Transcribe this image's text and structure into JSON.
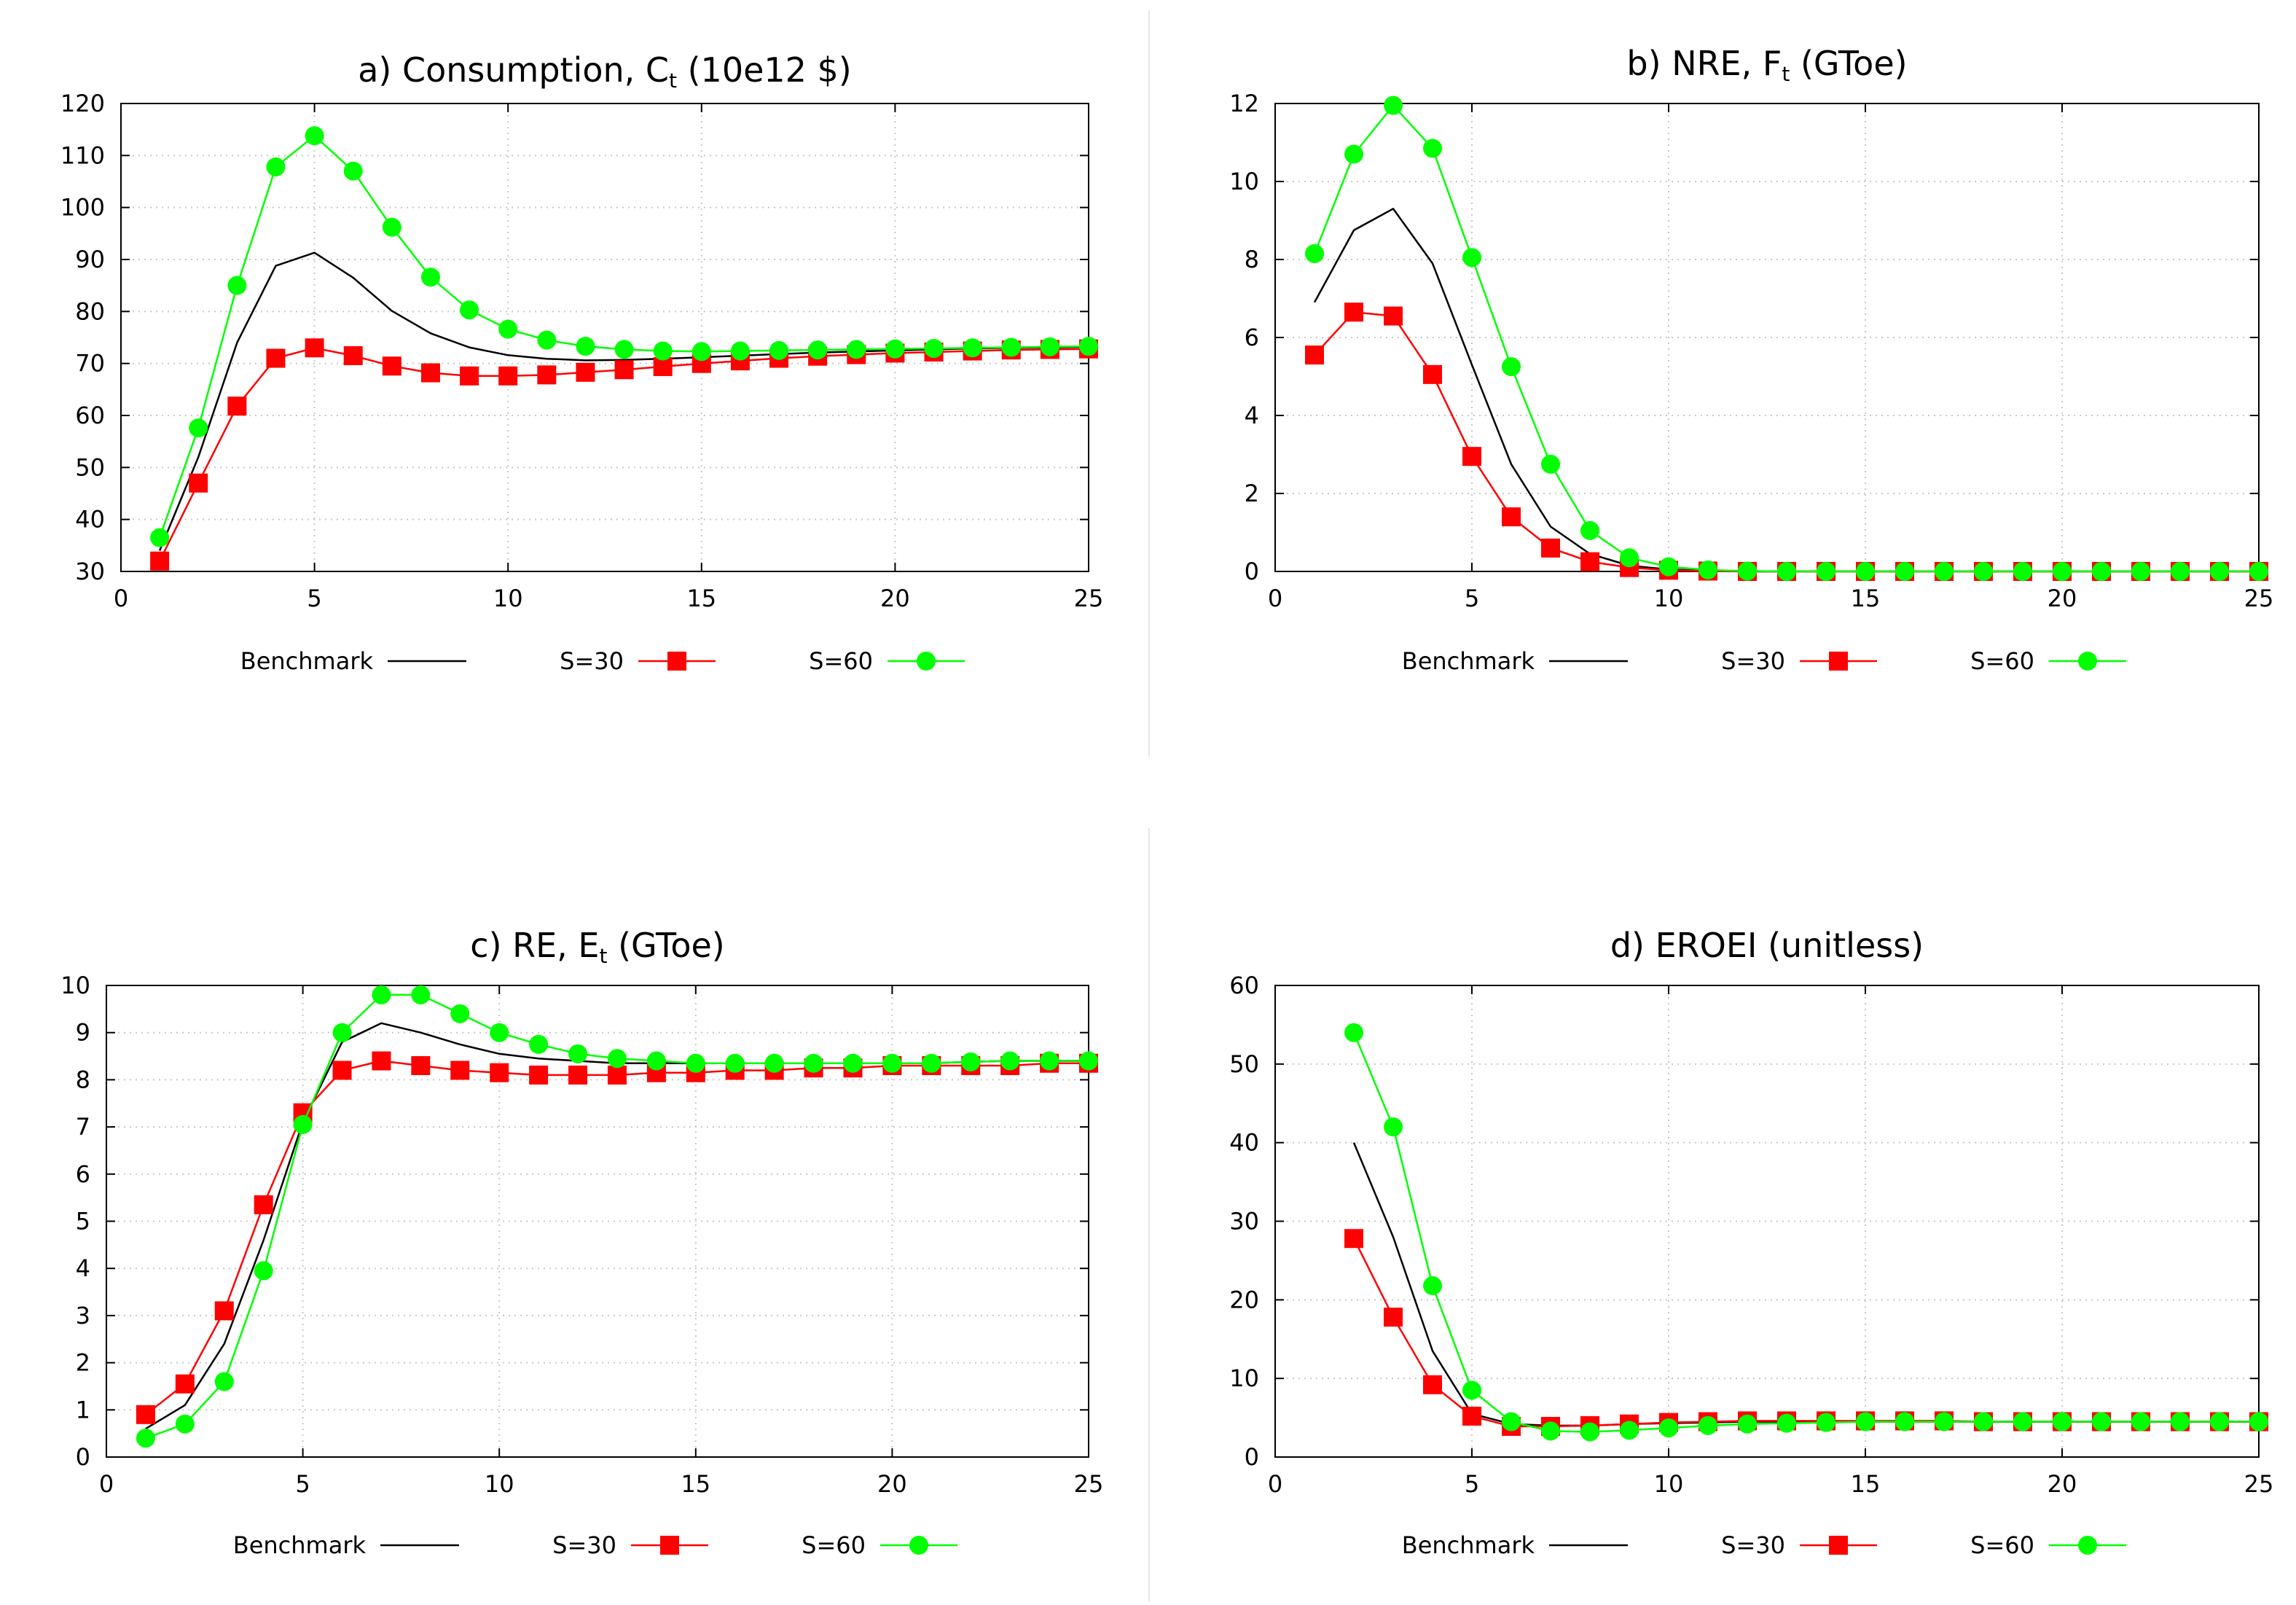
{
  "chart_data": [
    {
      "type": "line",
      "title": "a) Consumption, C",
      "title_sub": "t",
      "title_tail": " (10e12 $)",
      "xlim": [
        0,
        25
      ],
      "ylim": [
        30,
        120
      ],
      "xticks": [
        0,
        5,
        10,
        15,
        20,
        25
      ],
      "yticks": [
        30,
        40,
        50,
        60,
        70,
        80,
        90,
        100,
        110,
        120
      ],
      "grid": true,
      "legend_position": "bottom",
      "series": [
        {
          "name": "Benchmark",
          "color": "#000000",
          "marker": "none",
          "x": [
            1,
            2,
            3,
            4,
            5,
            6,
            7,
            8,
            9,
            10,
            11,
            12,
            13,
            14,
            15,
            16,
            17,
            18,
            19,
            20,
            21,
            22,
            23,
            24,
            25
          ],
          "values": [
            34,
            52,
            74,
            88.8,
            91.3,
            86.5,
            80.1,
            75.8,
            73.1,
            71.6,
            70.9,
            70.6,
            70.7,
            70.9,
            71.2,
            71.5,
            71.8,
            72.1,
            72.3,
            72.5,
            72.7,
            72.9,
            73.0,
            73.1,
            73.2
          ]
        },
        {
          "name": "S=30",
          "color": "#ff0000",
          "marker": "square",
          "x": [
            1,
            2,
            3,
            4,
            5,
            6,
            7,
            8,
            9,
            10,
            11,
            12,
            13,
            14,
            15,
            16,
            17,
            18,
            19,
            20,
            21,
            22,
            23,
            24,
            25
          ],
          "values": [
            32,
            47,
            61.8,
            71,
            73,
            71.5,
            69.5,
            68.2,
            67.6,
            67.6,
            67.8,
            68.3,
            68.8,
            69.4,
            70,
            70.5,
            71,
            71.4,
            71.7,
            72,
            72.2,
            72.4,
            72.6,
            72.7,
            72.8
          ]
        },
        {
          "name": "S=60",
          "color": "#00ff00",
          "marker": "circle",
          "x": [
            1,
            2,
            3,
            4,
            5,
            6,
            7,
            8,
            9,
            10,
            11,
            12,
            13,
            14,
            15,
            16,
            17,
            18,
            19,
            20,
            21,
            22,
            23,
            24,
            25
          ],
          "values": [
            36.5,
            57.6,
            85,
            107.8,
            113.8,
            107,
            96.2,
            86.6,
            80.3,
            76.6,
            74.5,
            73.3,
            72.7,
            72.4,
            72.3,
            72.4,
            72.5,
            72.6,
            72.7,
            72.8,
            72.9,
            73.0,
            73.1,
            73.2,
            73.3
          ]
        }
      ]
    },
    {
      "type": "line",
      "title": "b) NRE, F",
      "title_sub": "t",
      "title_tail": " (GToe)",
      "xlim": [
        0,
        25
      ],
      "ylim": [
        0,
        12
      ],
      "xticks": [
        0,
        5,
        10,
        15,
        20,
        25
      ],
      "yticks": [
        0,
        2,
        4,
        6,
        8,
        10,
        12
      ],
      "grid": true,
      "legend_position": "bottom",
      "series": [
        {
          "name": "Benchmark",
          "color": "#000000",
          "marker": "none",
          "x": [
            1,
            2,
            3,
            4,
            5,
            6,
            7,
            8,
            9,
            10,
            11,
            12,
            13,
            14,
            15,
            16,
            17,
            18,
            19,
            20,
            21,
            22,
            23,
            24,
            25
          ],
          "values": [
            6.9,
            8.75,
            9.3,
            7.9,
            5.3,
            2.75,
            1.15,
            0.45,
            0.15,
            0.05,
            0.02,
            0,
            0,
            0,
            0,
            0,
            0,
            0,
            0,
            0,
            0,
            0,
            0,
            0,
            0
          ]
        },
        {
          "name": "S=30",
          "color": "#ff0000",
          "marker": "square",
          "x": [
            1,
            2,
            3,
            4,
            5,
            6,
            7,
            8,
            9,
            10,
            11,
            12,
            13,
            14,
            15,
            16,
            17,
            18,
            19,
            20,
            21,
            22,
            23,
            24,
            25
          ],
          "values": [
            5.55,
            6.65,
            6.55,
            5.05,
            2.95,
            1.4,
            0.6,
            0.25,
            0.1,
            0.03,
            0.01,
            0,
            0,
            0,
            0,
            0,
            0,
            0,
            0,
            0,
            0,
            0,
            0,
            0,
            0
          ]
        },
        {
          "name": "S=60",
          "color": "#00ff00",
          "marker": "circle",
          "x": [
            1,
            2,
            3,
            4,
            5,
            6,
            7,
            8,
            9,
            10,
            11,
            12,
            13,
            14,
            15,
            16,
            17,
            18,
            19,
            20,
            21,
            22,
            23,
            24,
            25
          ],
          "values": [
            8.15,
            10.7,
            11.95,
            10.85,
            8.05,
            5.25,
            2.75,
            1.05,
            0.35,
            0.12,
            0.04,
            0.01,
            0,
            0,
            0,
            0,
            0,
            0,
            0,
            0,
            0,
            0,
            0,
            0,
            0
          ]
        }
      ]
    },
    {
      "type": "line",
      "title": "c) RE, E",
      "title_sub": "t",
      "title_tail": " (GToe)",
      "xlim": [
        0,
        25
      ],
      "ylim": [
        0,
        10
      ],
      "xticks": [
        0,
        5,
        10,
        15,
        20,
        25
      ],
      "yticks": [
        0,
        1,
        2,
        3,
        4,
        5,
        6,
        7,
        8,
        9,
        10
      ],
      "grid": true,
      "legend_position": "bottom",
      "series": [
        {
          "name": "Benchmark",
          "color": "#000000",
          "marker": "none",
          "x": [
            1,
            2,
            3,
            4,
            5,
            6,
            7,
            8,
            9,
            10,
            11,
            12,
            13,
            14,
            15,
            16,
            17,
            18,
            19,
            20,
            21,
            22,
            23,
            24,
            25
          ],
          "values": [
            0.6,
            1.1,
            2.4,
            4.6,
            7.1,
            8.8,
            9.2,
            9.0,
            8.75,
            8.55,
            8.45,
            8.4,
            8.35,
            8.35,
            8.35,
            8.35,
            8.35,
            8.35,
            8.35,
            8.35,
            8.35,
            8.38,
            8.4,
            8.4,
            8.4
          ]
        },
        {
          "name": "S=30",
          "color": "#ff0000",
          "marker": "square",
          "x": [
            1,
            2,
            3,
            4,
            5,
            6,
            7,
            8,
            9,
            10,
            11,
            12,
            13,
            14,
            15,
            16,
            17,
            18,
            19,
            20,
            21,
            22,
            23,
            24,
            25
          ],
          "values": [
            0.9,
            1.55,
            3.1,
            5.35,
            7.3,
            8.2,
            8.4,
            8.3,
            8.2,
            8.15,
            8.1,
            8.1,
            8.1,
            8.15,
            8.15,
            8.2,
            8.2,
            8.25,
            8.25,
            8.3,
            8.3,
            8.3,
            8.3,
            8.35,
            8.35
          ]
        },
        {
          "name": "S=60",
          "color": "#00ff00",
          "marker": "circle",
          "x": [
            1,
            2,
            3,
            4,
            5,
            6,
            7,
            8,
            9,
            10,
            11,
            12,
            13,
            14,
            15,
            16,
            17,
            18,
            19,
            20,
            21,
            22,
            23,
            24,
            25
          ],
          "values": [
            0.4,
            0.7,
            1.6,
            3.95,
            7.05,
            9.0,
            9.8,
            9.8,
            9.4,
            9.0,
            8.75,
            8.55,
            8.45,
            8.4,
            8.35,
            8.35,
            8.35,
            8.35,
            8.35,
            8.35,
            8.35,
            8.38,
            8.4,
            8.4,
            8.4
          ]
        }
      ]
    },
    {
      "type": "line",
      "title": "d) EROEI (unitless)",
      "title_sub": "",
      "title_tail": "",
      "xlim": [
        0,
        25
      ],
      "ylim": [
        0,
        60
      ],
      "xticks": [
        0,
        5,
        10,
        15,
        20,
        25
      ],
      "yticks": [
        0,
        10,
        20,
        30,
        40,
        50,
        60
      ],
      "grid": true,
      "legend_position": "bottom",
      "series": [
        {
          "name": "Benchmark",
          "color": "#000000",
          "marker": "none",
          "x": [
            2,
            3,
            4,
            5,
            6,
            7,
            8,
            9,
            10,
            11,
            12,
            13,
            14,
            15,
            16,
            17,
            18,
            19,
            20,
            21,
            22,
            23,
            24,
            25
          ],
          "values": [
            40,
            28,
            13.5,
            5.5,
            4.2,
            4.0,
            4.0,
            4.2,
            4.3,
            4.4,
            4.5,
            4.5,
            4.5,
            4.5,
            4.5,
            4.5,
            4.5,
            4.5,
            4.5,
            4.5,
            4.5,
            4.5,
            4.5,
            4.5
          ]
        },
        {
          "name": "S=30",
          "color": "#ff0000",
          "marker": "square",
          "x": [
            2,
            3,
            4,
            5,
            6,
            7,
            8,
            9,
            10,
            11,
            12,
            13,
            14,
            15,
            16,
            17,
            18,
            19,
            20,
            21,
            22,
            23,
            24,
            25
          ],
          "values": [
            27.8,
            17.8,
            9.2,
            5.2,
            3.9,
            3.9,
            4.0,
            4.2,
            4.4,
            4.5,
            4.6,
            4.6,
            4.6,
            4.6,
            4.6,
            4.6,
            4.5,
            4.5,
            4.5,
            4.5,
            4.5,
            4.5,
            4.5,
            4.5
          ]
        },
        {
          "name": "S=60",
          "color": "#00ff00",
          "marker": "circle",
          "x": [
            2,
            3,
            4,
            5,
            6,
            7,
            8,
            9,
            10,
            11,
            12,
            13,
            14,
            15,
            16,
            17,
            18,
            19,
            20,
            21,
            22,
            23,
            24,
            25
          ],
          "values": [
            54,
            42,
            21.8,
            8.5,
            4.5,
            3.3,
            3.2,
            3.4,
            3.7,
            4.0,
            4.2,
            4.3,
            4.4,
            4.5,
            4.5,
            4.5,
            4.5,
            4.5,
            4.5,
            4.5,
            4.5,
            4.5,
            4.5,
            4.5
          ]
        }
      ]
    }
  ]
}
